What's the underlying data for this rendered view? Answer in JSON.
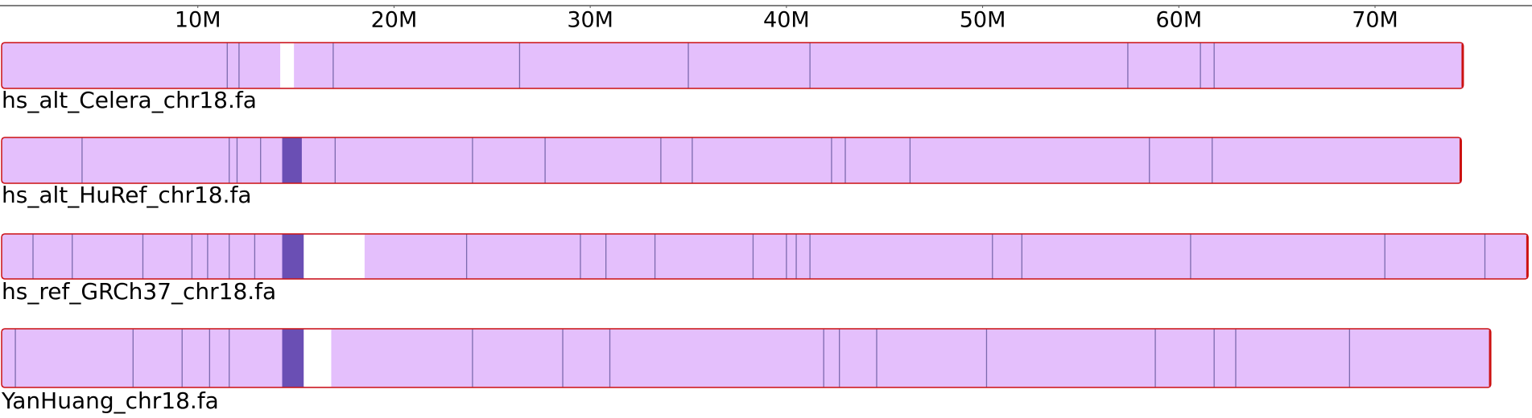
{
  "chart_data": {
    "type": "genome-tracks",
    "xlim": [
      0,
      78
    ],
    "xticks": [
      {
        "value": 10,
        "label": "10M"
      },
      {
        "value": 20,
        "label": "20M"
      },
      {
        "value": 30,
        "label": "30M"
      },
      {
        "value": 40,
        "label": "40M"
      },
      {
        "value": 50,
        "label": "50M"
      },
      {
        "value": 60,
        "label": "60M"
      },
      {
        "value": 70,
        "label": "70M"
      }
    ],
    "fill_color": "#e4bffc",
    "border_color": "#cc1111",
    "line_color": "#7c6aae",
    "dense_color": "#6a4fb4",
    "tracks": [
      {
        "name": "hs_alt_Celera_chr18.fa",
        "length": 74.5,
        "gaps": [
          [
            14.2,
            14.9
          ]
        ],
        "dense": [],
        "lines": [
          11.5,
          12.1,
          16.9,
          26.4,
          35.0,
          41.2,
          57.4,
          61.1,
          61.8
        ]
      },
      {
        "name": "hs_alt_HuRef_chr18.fa",
        "length": 74.4,
        "gaps": [],
        "dense": [
          [
            14.3,
            15.3
          ]
        ],
        "lines": [
          4.1,
          11.6,
          12.0,
          13.2,
          17.0,
          24.0,
          27.7,
          33.6,
          35.2,
          42.3,
          43.0,
          46.3,
          58.5,
          61.7
        ]
      },
      {
        "name": "hs_ref_GRCh37_chr18.fa",
        "length": 77.8,
        "gaps": [
          [
            15.4,
            18.5
          ]
        ],
        "dense": [
          [
            14.3,
            15.4
          ]
        ],
        "lines": [
          1.6,
          3.6,
          7.2,
          9.7,
          10.5,
          11.6,
          12.9,
          23.7,
          29.5,
          30.8,
          33.3,
          38.3,
          40.0,
          40.5,
          41.2,
          50.5,
          52.0,
          60.6,
          70.5,
          75.6
        ]
      },
      {
        "name": "YanHuang_chr18.fa",
        "length": 75.9,
        "gaps": [
          [
            15.4,
            16.8
          ]
        ],
        "dense": [
          [
            14.3,
            15.4
          ]
        ],
        "lines": [
          0.7,
          6.7,
          9.2,
          10.6,
          11.6,
          24.0,
          28.6,
          31.0,
          41.9,
          42.7,
          44.6,
          50.2,
          58.8,
          61.8,
          62.9,
          68.7
        ]
      }
    ]
  }
}
